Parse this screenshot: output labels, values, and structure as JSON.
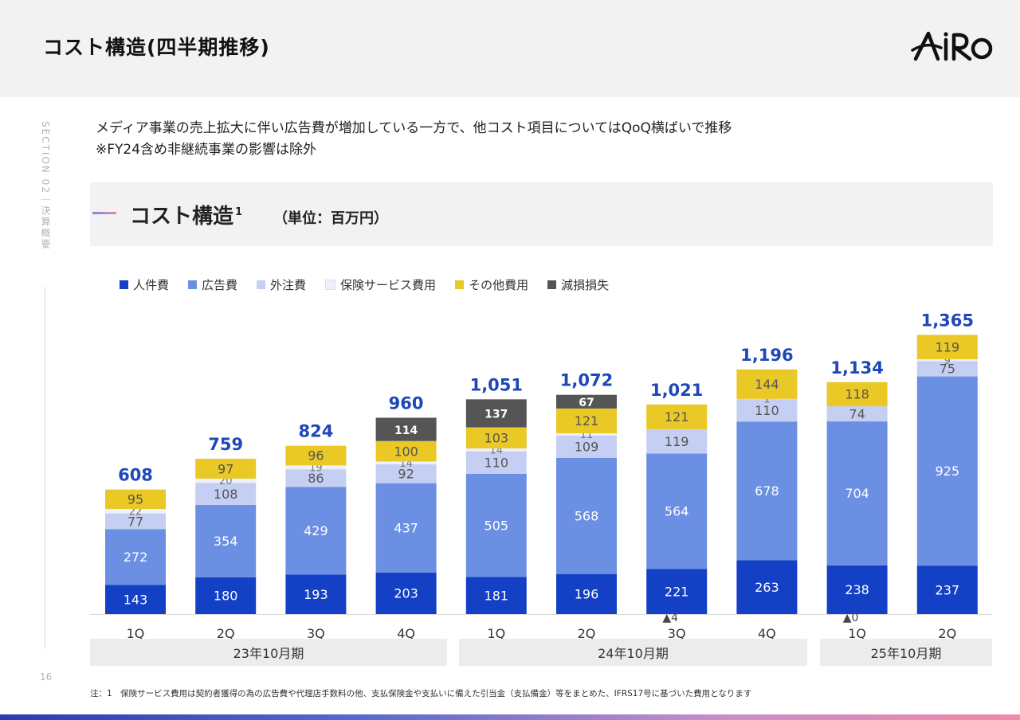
{
  "header": {
    "title": "コスト構造(四半期推移)"
  },
  "sidebar": {
    "section_label": "SECTION 02｜決算概要",
    "page_number": "16"
  },
  "description": {
    "line1": "メディア事業の売上拡大に伴い広告費が増加している一方で、他コスト項目についてはQoQ横ばいで推移",
    "line2": "※FY24含め非継続事業の影響は除外"
  },
  "section": {
    "title": "コスト構造",
    "superscript": "1",
    "unit": "（単位：百万円）"
  },
  "legend": [
    {
      "label": "人件費",
      "color": "#1340c4"
    },
    {
      "label": "広告費",
      "color": "#6b8fe3"
    },
    {
      "label": "外注費",
      "color": "#c5cff3"
    },
    {
      "label": "保険サービス費用",
      "color": "#eef1fa"
    },
    {
      "label": "その他費用",
      "color": "#eac825"
    },
    {
      "label": "減損損失",
      "color": "#555555"
    }
  ],
  "chart_data": {
    "type": "bar",
    "stacked": true,
    "categories": [
      "1Q",
      "2Q",
      "3Q",
      "4Q",
      "1Q",
      "2Q",
      "3Q",
      "4Q",
      "1Q",
      "2Q"
    ],
    "series": [
      {
        "name": "人件費",
        "values": [
          143,
          180,
          193,
          203,
          181,
          196,
          221,
          263,
          238,
          237
        ]
      },
      {
        "name": "広告費",
        "values": [
          272,
          354,
          429,
          437,
          505,
          568,
          564,
          678,
          704,
          925
        ]
      },
      {
        "name": "外注費",
        "values": [
          77,
          108,
          86,
          92,
          110,
          109,
          119,
          110,
          74,
          75
        ]
      },
      {
        "name": "保険サービス費用",
        "values": [
          22,
          20,
          19,
          14,
          14,
          11,
          0,
          1,
          0,
          9
        ]
      },
      {
        "name": "その他費用",
        "values": [
          95,
          97,
          96,
          100,
          103,
          121,
          121,
          144,
          118,
          119
        ]
      },
      {
        "name": "減損損失",
        "values": [
          0,
          0,
          0,
          114,
          137,
          67,
          0,
          0,
          0,
          0
        ]
      }
    ],
    "negatives": [
      {
        "index": 6,
        "label": "▲4"
      },
      {
        "index": 8,
        "label": "▲0"
      }
    ],
    "totals": [
      "608",
      "759",
      "824",
      "960",
      "1,051",
      "1,072",
      "1,021",
      "1,196",
      "1,134",
      "1,365"
    ],
    "periods": [
      {
        "label": "23年10月期",
        "from": 0,
        "to": 3
      },
      {
        "label": "24年10月期",
        "from": 4,
        "to": 7
      },
      {
        "label": "25年10月期",
        "from": 8,
        "to": 9
      }
    ],
    "ylim": [
      0,
      1400
    ],
    "grid": false,
    "legend_position": "top-left"
  },
  "footnote": "注：1　保険サービス費用は契約者獲得の為の広告費や代理店手数料の他、支払保険金や支払いに備えた引当金（支払備金）等をまとめた、IFRS17号に基づいた費用となります"
}
